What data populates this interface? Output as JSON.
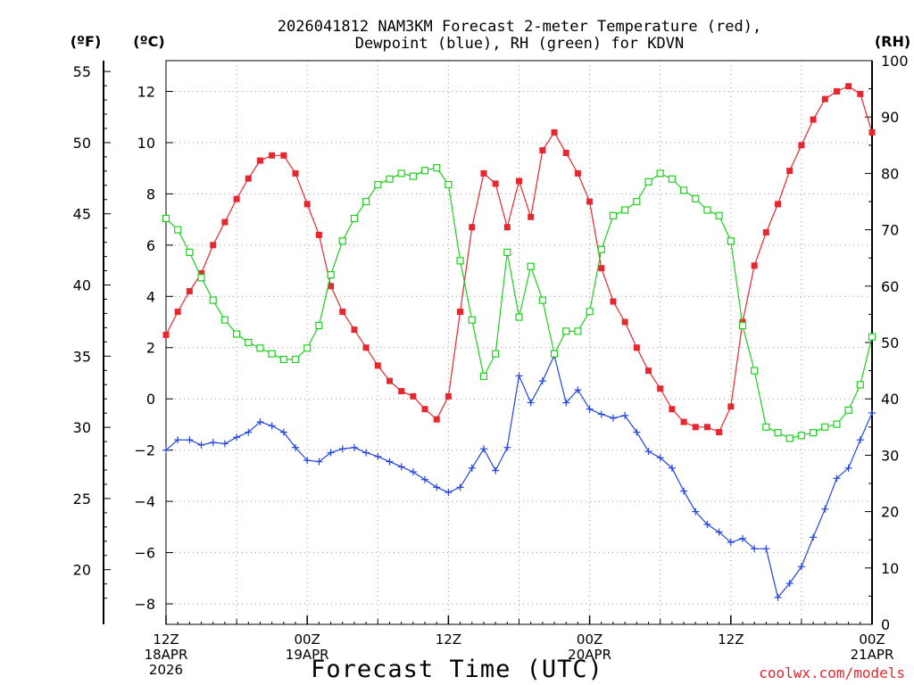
{
  "chart_data": {
    "type": "line",
    "title_line1": "2026041812 NAM3KM Forecast 2-meter Temperature (red),",
    "title_line2": "Dewpoint (blue), RH (green) for KDVN",
    "xlabel": "Forecast Time (UTC)",
    "credit": "coolwx.com/models",
    "left_axis_label_f": "(ºF)",
    "left_axis_label_c": "(ºC)",
    "right_axis_label": "(RH)",
    "forecast_hour_range": [
      0,
      60
    ],
    "celsius_range": [
      -8.8,
      13.2
    ],
    "rh_range": [
      0,
      100
    ],
    "celsius_ticks": [
      -8,
      -6,
      -4,
      -2,
      0,
      2,
      4,
      6,
      8,
      10,
      12
    ],
    "fahrenheit_ticks": [
      20,
      25,
      30,
      35,
      40,
      45,
      50,
      55
    ],
    "rh_ticks": [
      0,
      10,
      20,
      30,
      40,
      50,
      60,
      70,
      80,
      90,
      100
    ],
    "x_ticks": [
      {
        "hour": 0,
        "lines": [
          "12Z",
          "18APR",
          "2026"
        ]
      },
      {
        "hour": 12,
        "lines": [
          "00Z",
          "19APR"
        ]
      },
      {
        "hour": 24,
        "lines": [
          "12Z"
        ]
      },
      {
        "hour": 36,
        "lines": [
          "00Z",
          "20APR"
        ]
      },
      {
        "hour": 48,
        "lines": [
          "12Z"
        ]
      },
      {
        "hour": 60,
        "lines": [
          "00Z",
          "21APR"
        ]
      }
    ],
    "series": [
      {
        "name": "2-meter Temperature",
        "unit": "C",
        "color": "#e8262e",
        "marker": "filled-square",
        "x": [
          0,
          1,
          2,
          3,
          4,
          5,
          6,
          7,
          8,
          9,
          10,
          11,
          12,
          13,
          14,
          15,
          16,
          17,
          18,
          19,
          20,
          21,
          22,
          23,
          24,
          25,
          26,
          27,
          28,
          29,
          30,
          31,
          32,
          33,
          34,
          35,
          36,
          37,
          38,
          39,
          40,
          41,
          42,
          43,
          44,
          45,
          46,
          47,
          48,
          49,
          50,
          51,
          52,
          53,
          54,
          55,
          56,
          57,
          58,
          59,
          60
        ],
        "values": [
          2.5,
          3.4,
          4.2,
          4.9,
          6.0,
          6.9,
          7.8,
          8.6,
          9.3,
          9.5,
          9.5,
          8.8,
          7.6,
          6.4,
          4.4,
          3.4,
          2.7,
          2.0,
          1.3,
          0.7,
          0.3,
          0.1,
          -0.4,
          -0.8,
          0.1,
          3.4,
          6.7,
          8.8,
          8.4,
          6.7,
          8.5,
          7.1,
          9.7,
          10.4,
          9.6,
          8.8,
          7.7,
          5.1,
          3.8,
          3.0,
          2.0,
          1.1,
          0.4,
          -0.4,
          -0.9,
          -1.1,
          -1.1,
          -1.3,
          -0.3,
          3.0,
          5.2,
          6.5,
          7.6,
          8.9,
          9.9,
          10.9,
          11.7,
          12.0,
          12.2,
          11.9,
          10.4
        ]
      },
      {
        "name": "Dewpoint",
        "unit": "C",
        "color": "#2244e0",
        "marker": "plus",
        "x": [
          0,
          1,
          2,
          3,
          4,
          5,
          6,
          7,
          8,
          9,
          10,
          11,
          12,
          13,
          14,
          15,
          16,
          17,
          18,
          19,
          20,
          21,
          22,
          23,
          24,
          25,
          26,
          27,
          28,
          29,
          30,
          31,
          32,
          33,
          34,
          35,
          36,
          37,
          38,
          39,
          40,
          41,
          42,
          43,
          44,
          45,
          46,
          47,
          48,
          49,
          50,
          51,
          52,
          53,
          54,
          55,
          56,
          57,
          58,
          59,
          60
        ],
        "values": [
          -2.0,
          -1.6,
          -1.6,
          -1.8,
          -1.7,
          -1.75,
          -1.5,
          -1.3,
          -0.9,
          -1.05,
          -1.3,
          -1.9,
          -2.4,
          -2.45,
          -2.1,
          -1.95,
          -1.9,
          -2.1,
          -2.25,
          -2.45,
          -2.65,
          -2.85,
          -3.15,
          -3.45,
          -3.65,
          -3.45,
          -2.7,
          -1.95,
          -2.8,
          -1.9,
          0.9,
          -0.15,
          0.7,
          1.7,
          -0.15,
          0.35,
          -0.4,
          -0.6,
          -0.75,
          -0.65,
          -1.3,
          -2.05,
          -2.3,
          -2.7,
          -3.6,
          -4.4,
          -4.9,
          -5.2,
          -5.6,
          -5.45,
          -5.85,
          -5.85,
          -7.75,
          -7.2,
          -6.55,
          -5.4,
          -4.3,
          -3.1,
          -2.7,
          -1.6,
          -0.55
        ]
      },
      {
        "name": "RH",
        "unit": "%",
        "color": "#1ed01e",
        "marker": "open-square",
        "x": [
          0,
          1,
          2,
          3,
          4,
          5,
          6,
          7,
          8,
          9,
          10,
          11,
          12,
          13,
          14,
          15,
          16,
          17,
          18,
          19,
          20,
          21,
          22,
          23,
          24,
          25,
          26,
          27,
          28,
          29,
          30,
          31,
          32,
          33,
          34,
          35,
          36,
          37,
          38,
          39,
          40,
          41,
          42,
          43,
          44,
          45,
          46,
          47,
          48,
          49,
          50,
          51,
          52,
          53,
          54,
          55,
          56,
          57,
          58,
          59,
          60
        ],
        "values": [
          72,
          70,
          66,
          61.5,
          57.5,
          54,
          51.5,
          50,
          49,
          48,
          47,
          47,
          49,
          53,
          62,
          68,
          72,
          75,
          78,
          79,
          80,
          79.5,
          80.5,
          81,
          78,
          64.5,
          54,
          44,
          48,
          66,
          54.5,
          63.5,
          57.5,
          48,
          52,
          52,
          55.5,
          66.5,
          72.5,
          73.5,
          75,
          78.5,
          80,
          79,
          77,
          75.5,
          73.5,
          72.5,
          68,
          53,
          45,
          35,
          34,
          33,
          33.5,
          34,
          35,
          35.5,
          38,
          42.5,
          51
        ]
      }
    ]
  }
}
